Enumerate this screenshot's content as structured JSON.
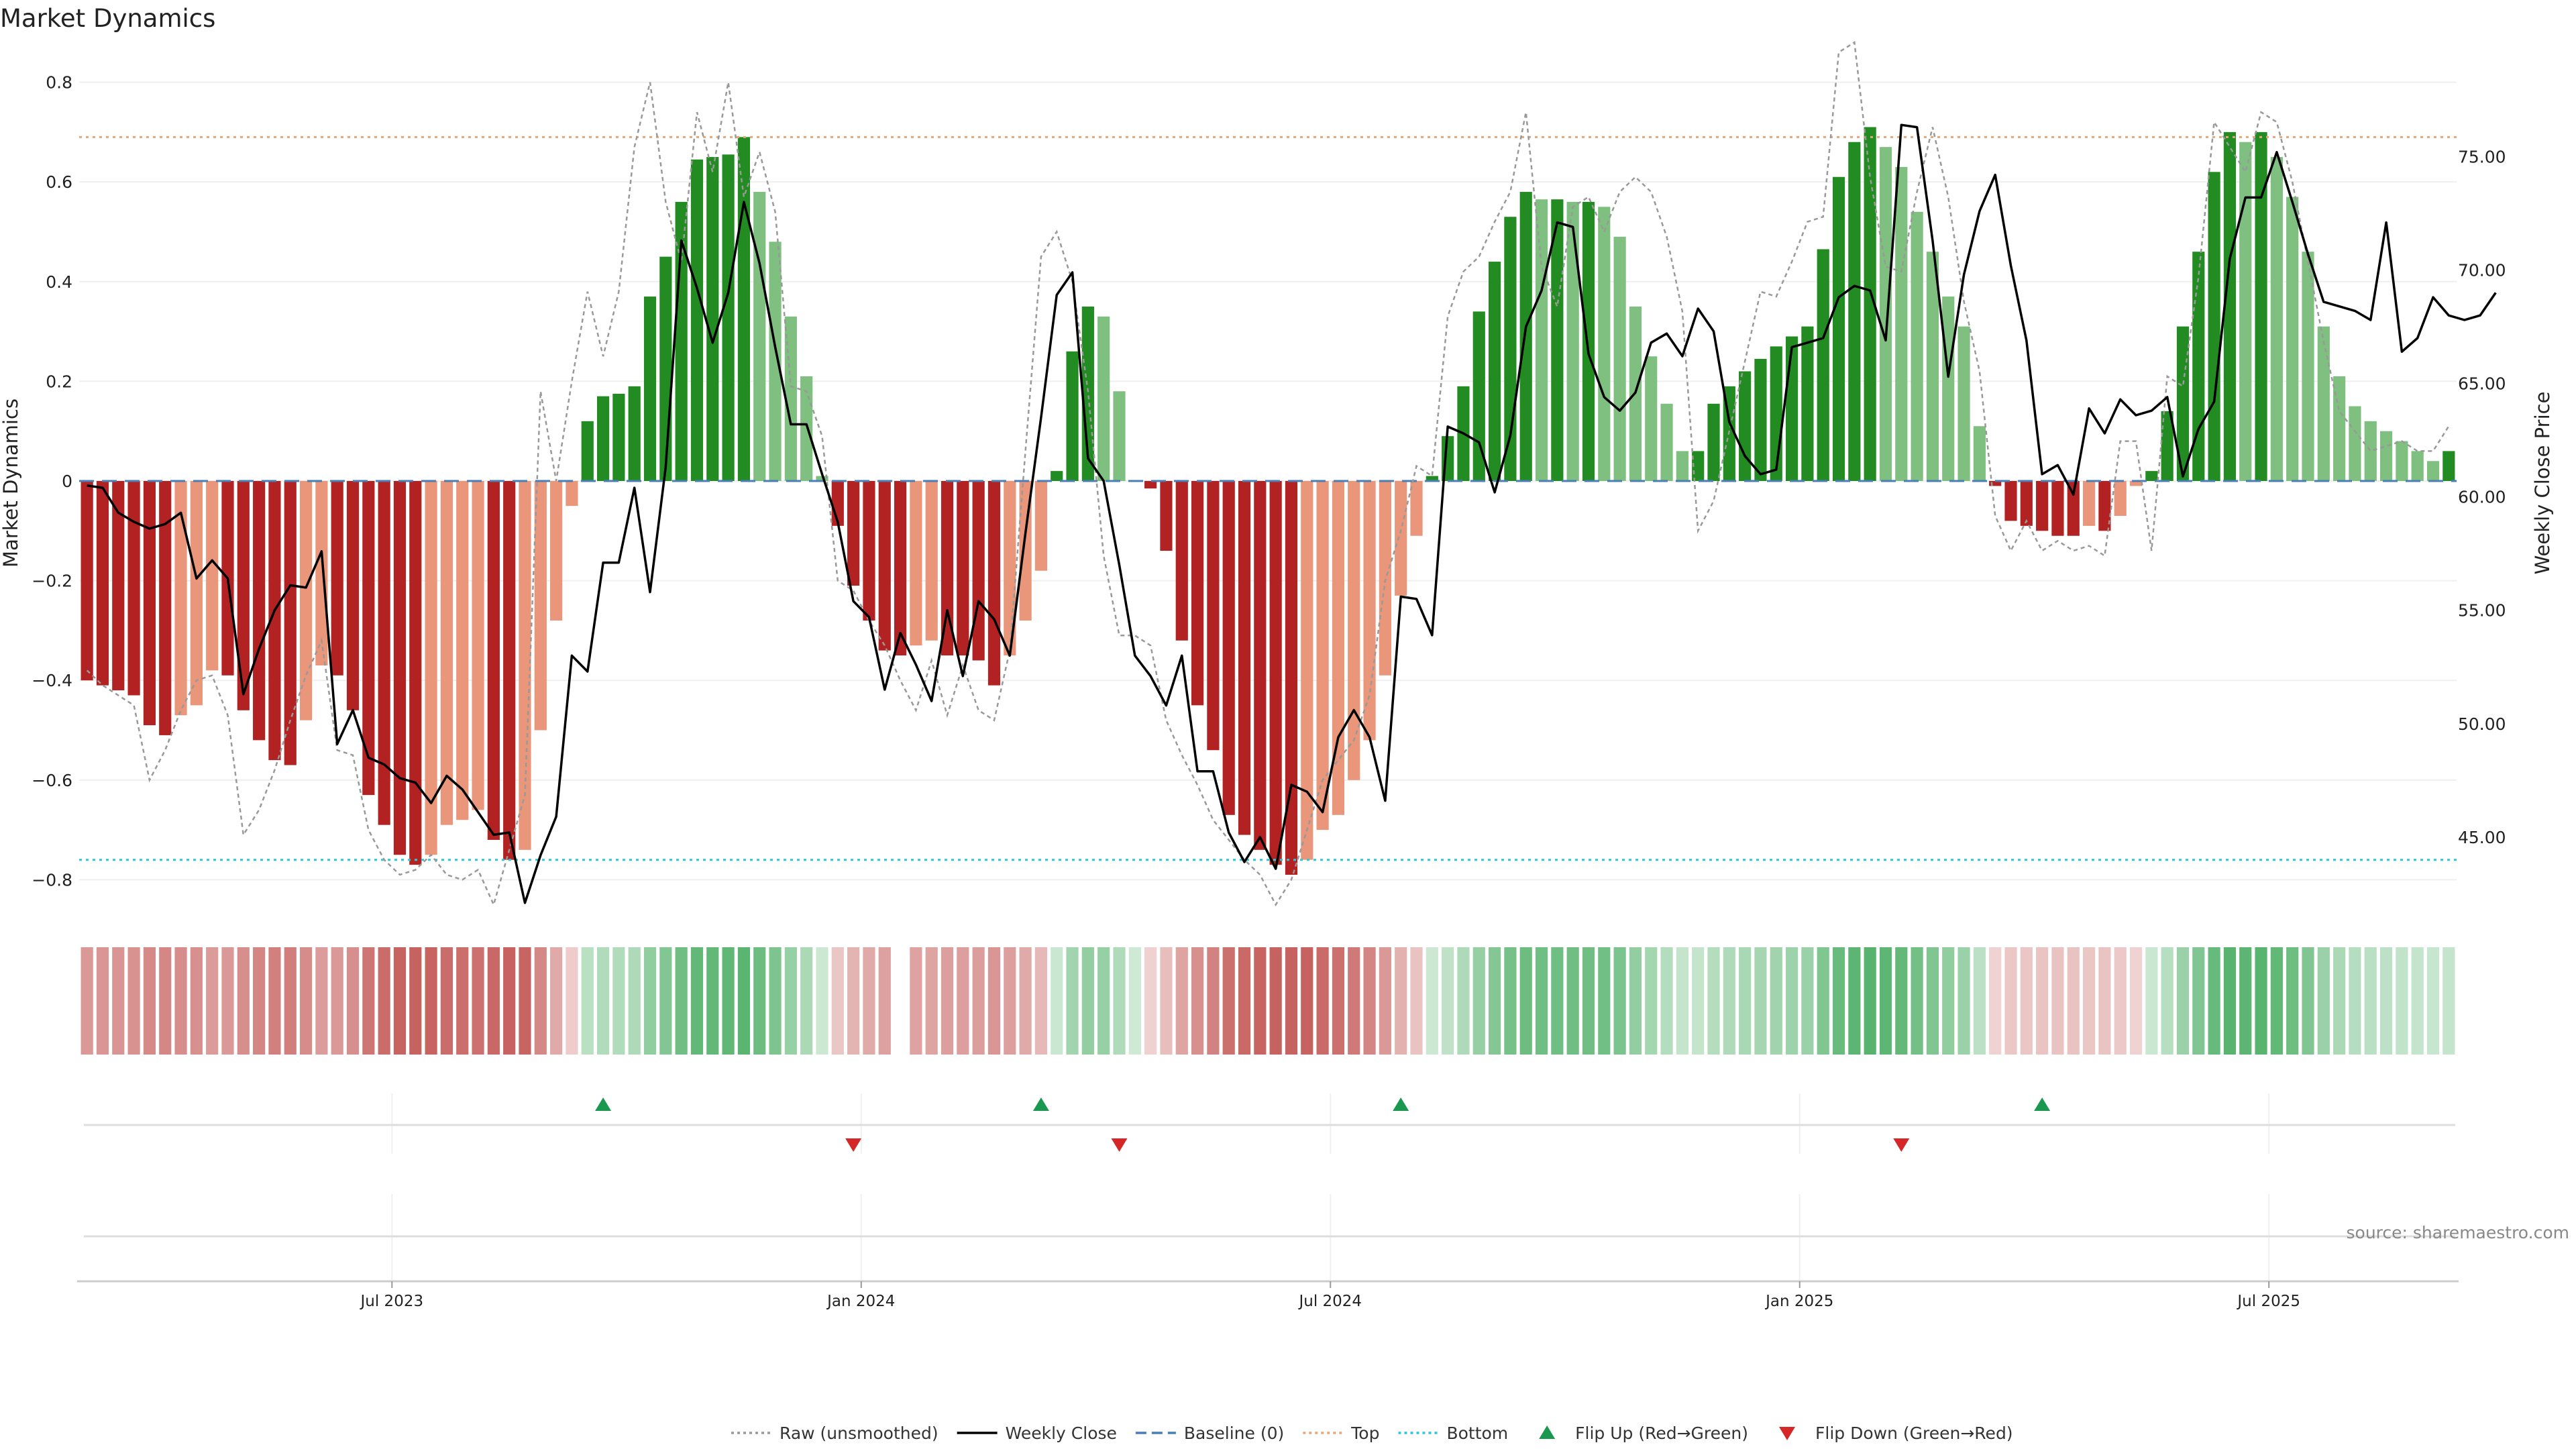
{
  "title": "Market Dynamics",
  "source": "source: sharemaestro.com",
  "chart_data": {
    "type": "bar",
    "ylabel_left": "Market Dynamics",
    "ylabel_right": "Weekly Close Price",
    "ylim_left": [
      -0.86,
      0.86
    ],
    "ylim_right": [
      41.8,
      79.6
    ],
    "left_ticks": [
      "0.8",
      "0.6",
      "0.4",
      "0.2",
      "0",
      "−0.2",
      "−0.4",
      "−0.6",
      "−0.8"
    ],
    "left_tick_values": [
      0.8,
      0.6,
      0.4,
      0.2,
      0,
      -0.2,
      -0.4,
      -0.6,
      -0.8
    ],
    "right_ticks": [
      "75.00",
      "70.00",
      "65.00",
      "60.00",
      "55.00",
      "50.00",
      "45.00"
    ],
    "right_tick_values": [
      75,
      70,
      65,
      60,
      55,
      50,
      45
    ],
    "x_ticks": [
      "Jul 2023",
      "Jan 2024",
      "Jul 2024",
      "Jan 2025",
      "Jul 2025"
    ],
    "x_tick_weeks": [
      20,
      50,
      80,
      110,
      140
    ],
    "top_line": 0.69,
    "bottom_line": -0.76,
    "baseline": 0,
    "colors": {
      "red_dark": "#b22222",
      "red_light": "#e9967a",
      "green_dark": "#228b22",
      "green_light": "#7fbf7f",
      "close_line": "#000000",
      "raw_line": "#999999",
      "baseline": "#4a7fb5",
      "top": "#e3a87a",
      "bottom": "#2fc6d6",
      "flip_up": "#1a9850",
      "flip_down": "#d62728"
    },
    "bars": [
      -0.4,
      -0.41,
      -0.42,
      -0.43,
      -0.49,
      -0.51,
      -0.47,
      -0.45,
      -0.38,
      -0.39,
      -0.46,
      -0.52,
      -0.56,
      -0.57,
      -0.48,
      -0.37,
      -0.39,
      -0.46,
      -0.63,
      -0.69,
      -0.75,
      -0.77,
      -0.75,
      -0.69,
      -0.68,
      -0.66,
      -0.72,
      -0.76,
      -0.74,
      -0.5,
      -0.28,
      -0.05,
      0.12,
      0.17,
      0.175,
      0.19,
      0.37,
      0.45,
      0.56,
      0.645,
      0.65,
      0.655,
      0.69,
      0.58,
      0.48,
      0.33,
      0.21,
      0.01,
      -0.09,
      -0.21,
      -0.28,
      -0.34,
      -0.35,
      -0.33,
      -0.32,
      -0.35,
      -0.35,
      -0.36,
      -0.41,
      -0.35,
      -0.28,
      -0.18,
      0.02,
      0.26,
      0.35,
      0.33,
      0.18,
      0,
      -0.015,
      -0.14,
      -0.32,
      -0.45,
      -0.54,
      -0.67,
      -0.71,
      -0.74,
      -0.77,
      -0.79,
      -0.76,
      -0.7,
      -0.67,
      -0.6,
      -0.52,
      -0.39,
      -0.23,
      -0.11,
      0.01,
      0.09,
      0.19,
      0.34,
      0.44,
      0.53,
      0.58,
      0.565,
      0.565,
      0.56,
      0.56,
      0.55,
      0.49,
      0.35,
      0.25,
      0.155,
      0.06,
      0.06,
      0.155,
      0.19,
      0.22,
      0.245,
      0.27,
      0.29,
      0.31,
      0.465,
      0.61,
      0.68,
      0.71,
      0.67,
      0.63,
      0.54,
      0.46,
      0.37,
      0.31,
      0.11,
      -0.01,
      -0.08,
      -0.09,
      -0.1,
      -0.11,
      -0.11,
      -0.09,
      -0.1,
      -0.07,
      -0.01,
      0.02,
      0.14,
      0.31,
      0.46,
      0.62,
      0.7,
      0.68,
      0.7,
      0.65,
      0.57,
      0.46,
      0.31,
      0.21,
      0.15,
      0.12,
      0.1,
      0.08,
      0.06,
      0.04,
      0.06
    ],
    "close": [
      60.5,
      60.4,
      59.3,
      58.9,
      58.6,
      58.8,
      59.3,
      56.4,
      57.2,
      56.4,
      51.3,
      53.3,
      55.0,
      56.1,
      56.0,
      57.6,
      49.1,
      50.6,
      48.5,
      48.2,
      47.6,
      47.4,
      46.5,
      47.7,
      47.1,
      46.1,
      45.1,
      45.2,
      42.1,
      44.2,
      45.9,
      53.0,
      52.3,
      57.1,
      57.1,
      60.4,
      55.8,
      61.3,
      71.3,
      69.2,
      66.8,
      69.0,
      73.0,
      70.3,
      66.6,
      63.2,
      63.2,
      61.0,
      58.9,
      55.4,
      54.7,
      51.5,
      54.0,
      52.6,
      51.0,
      55.0,
      52.1,
      55.4,
      54.6,
      53.0,
      58.4,
      63.5,
      68.9,
      69.9,
      61.7,
      60.7,
      57.0,
      53.0,
      52.1,
      50.8,
      53.0,
      47.9,
      47.9,
      45.2,
      43.9,
      45.0,
      43.6,
      47.3,
      47.0,
      46.1,
      49.4,
      50.6,
      49.4,
      46.6,
      55.6,
      55.5,
      53.9,
      63.1,
      62.8,
      62.4,
      60.2,
      62.7,
      67.5,
      69.1,
      72.1,
      71.9,
      66.3,
      64.4,
      63.8,
      64.6,
      66.8,
      67.2,
      66.2,
      68.3,
      67.3,
      63.3,
      61.8,
      61.0,
      61.2,
      66.6,
      66.8,
      67.0,
      68.8,
      69.3,
      69.1,
      66.9,
      76.4,
      76.3,
      71.3,
      65.3,
      69.8,
      72.6,
      74.2,
      70.2,
      66.9,
      61.0,
      61.4,
      60.1,
      63.9,
      62.8,
      64.3,
      63.6,
      63.8,
      64.4,
      60.9,
      63.0,
      64.2,
      70.5,
      73.2,
      73.2,
      75.2,
      73.0,
      70.7,
      68.6,
      68.4,
      68.2,
      67.8,
      72.1,
      66.4,
      67.0,
      68.8,
      68.0,
      67.8,
      68.0,
      69.0
    ],
    "raw": [
      -0.38,
      -0.41,
      -0.43,
      -0.45,
      -0.6,
      -0.54,
      -0.46,
      -0.4,
      -0.39,
      -0.47,
      -0.71,
      -0.66,
      -0.58,
      -0.48,
      -0.39,
      -0.32,
      -0.54,
      -0.55,
      -0.7,
      -0.76,
      -0.79,
      -0.78,
      -0.75,
      -0.79,
      -0.8,
      -0.78,
      -0.85,
      -0.74,
      -0.63,
      0.18,
      0.0,
      0.2,
      0.38,
      0.25,
      0.38,
      0.67,
      0.8,
      0.56,
      0.44,
      0.74,
      0.62,
      0.8,
      0.57,
      0.66,
      0.54,
      0.19,
      0.18,
      0.09,
      -0.2,
      -0.22,
      -0.28,
      -0.33,
      -0.4,
      -0.46,
      -0.36,
      -0.47,
      -0.37,
      -0.46,
      -0.48,
      -0.34,
      0.06,
      0.45,
      0.5,
      0.4,
      0.18,
      -0.15,
      -0.31,
      -0.31,
      -0.33,
      -0.48,
      -0.55,
      -0.61,
      -0.68,
      -0.72,
      -0.76,
      -0.79,
      -0.85,
      -0.8,
      -0.7,
      -0.6,
      -0.56,
      -0.52,
      -0.43,
      -0.2,
      -0.1,
      0.03,
      0.01,
      0.33,
      0.42,
      0.45,
      0.52,
      0.58,
      0.74,
      0.43,
      0.35,
      0.55,
      0.57,
      0.5,
      0.58,
      0.61,
      0.58,
      0.49,
      0.34,
      -0.1,
      -0.04,
      0.1,
      0.24,
      0.38,
      0.37,
      0.44,
      0.52,
      0.53,
      0.86,
      0.88,
      0.61,
      0.43,
      0.42,
      0.58,
      0.71,
      0.57,
      0.36,
      0.22,
      -0.07,
      -0.14,
      -0.08,
      -0.14,
      -0.12,
      -0.14,
      -0.13,
      -0.15,
      0.08,
      0.08,
      -0.14,
      0.21,
      0.19,
      0.41,
      0.72,
      0.67,
      0.62,
      0.74,
      0.72,
      0.6,
      0.44,
      0.28,
      0.14,
      0.1,
      0.06,
      0.07,
      0.08,
      0.06,
      0.06,
      0.11
    ],
    "heat_gaps": [
      52
    ],
    "flips_up_weeks": [
      33,
      61,
      84,
      125
    ],
    "flips_down_weeks": [
      49,
      66,
      116
    ],
    "legend": [
      {
        "label": "Raw (unsmoothed)",
        "kind": "dotted-line",
        "color": "#999999"
      },
      {
        "label": "Weekly Close",
        "kind": "solid-line",
        "color": "#000000"
      },
      {
        "label": "Baseline (0)",
        "kind": "dashed-line",
        "color": "#4a7fb5"
      },
      {
        "label": "Top",
        "kind": "dotted-line",
        "color": "#e3a87a"
      },
      {
        "label": "Bottom",
        "kind": "dotted-line",
        "color": "#2fc6d6"
      },
      {
        "label": "Flip Up (Red→Green)",
        "kind": "up-triangle",
        "color": "#1a9850"
      },
      {
        "label": "Flip Down (Green→Red)",
        "kind": "down-triangle",
        "color": "#d62728"
      }
    ],
    "legend_position": "bottom-center"
  }
}
